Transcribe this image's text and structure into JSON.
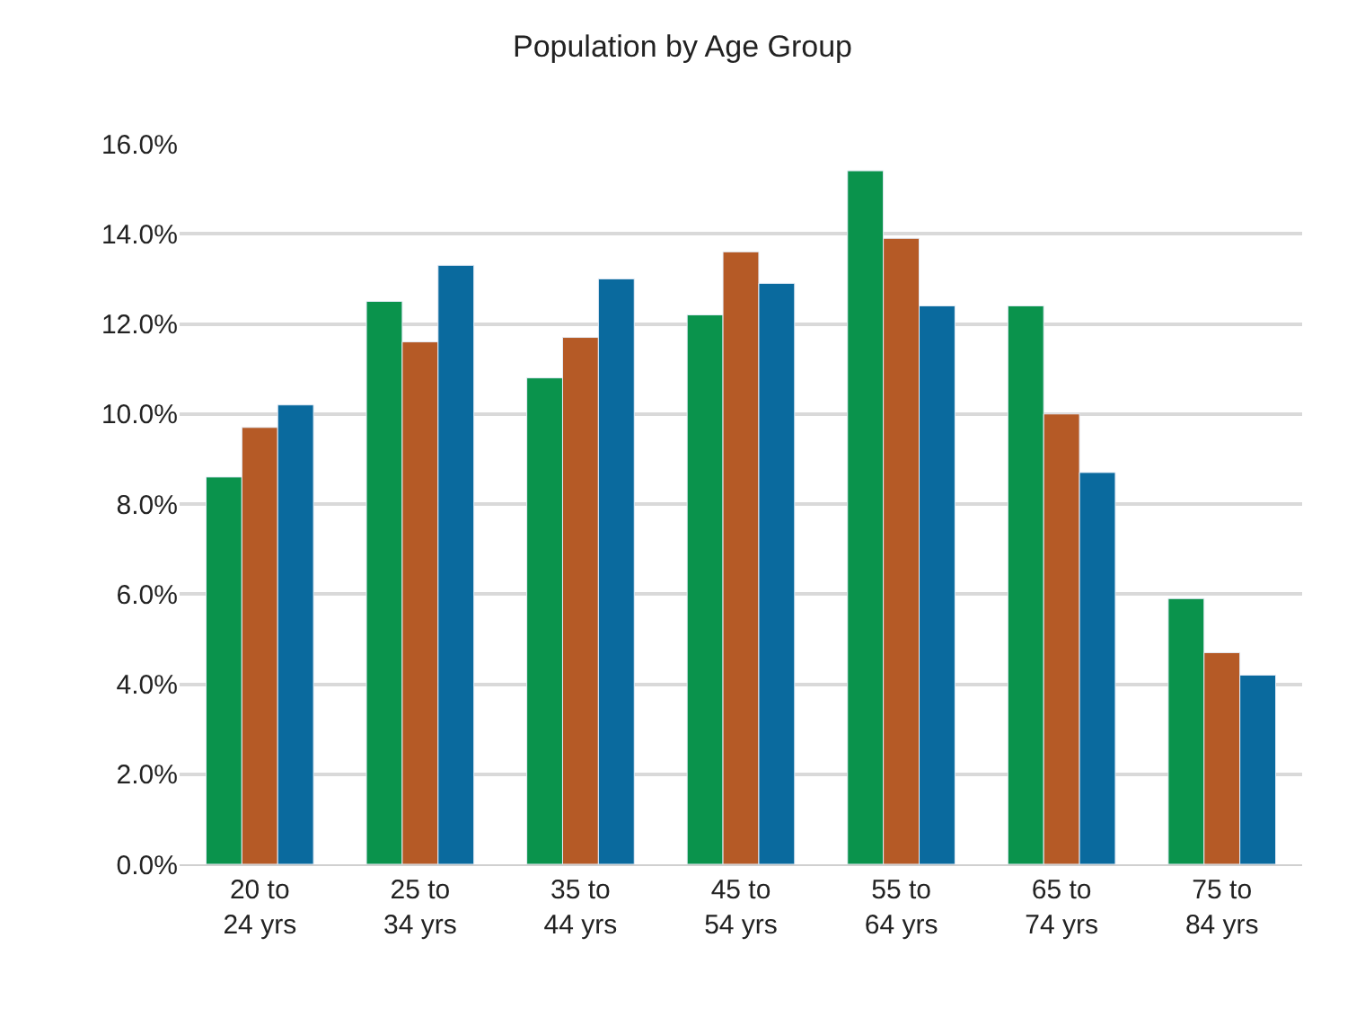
{
  "chart_data": {
    "type": "bar",
    "title": "Population by Age Group",
    "categories": [
      "20 to\n24 yrs",
      "25 to\n34 yrs",
      "35 to\n44 yrs",
      "45 to\n54 yrs",
      "55 to\n64 yrs",
      "65 to\n74 yrs",
      "75 to\n84 yrs"
    ],
    "series": [
      {
        "color": "#0a934c",
        "values": [
          8.6,
          12.5,
          10.8,
          12.2,
          15.4,
          12.4,
          5.9
        ]
      },
      {
        "color": "#b55a26",
        "values": [
          9.7,
          11.6,
          11.7,
          13.6,
          13.9,
          10.0,
          4.7
        ]
      },
      {
        "color": "#0a6a9e",
        "values": [
          10.2,
          13.3,
          13.0,
          12.9,
          12.4,
          8.7,
          4.2
        ]
      }
    ],
    "ylim": [
      0,
      16
    ],
    "yticks": [
      {
        "value": 0,
        "label": "0.0%"
      },
      {
        "value": 2,
        "label": "2.0%"
      },
      {
        "value": 4,
        "label": "4.0%"
      },
      {
        "value": 6,
        "label": "6.0%"
      },
      {
        "value": 8,
        "label": "8.0%"
      },
      {
        "value": 10,
        "label": "10.0%"
      },
      {
        "value": 12,
        "label": "12.0%"
      },
      {
        "value": 14,
        "label": "14.0%"
      },
      {
        "value": 16,
        "label": "16.0%"
      }
    ],
    "grid": "y"
  }
}
